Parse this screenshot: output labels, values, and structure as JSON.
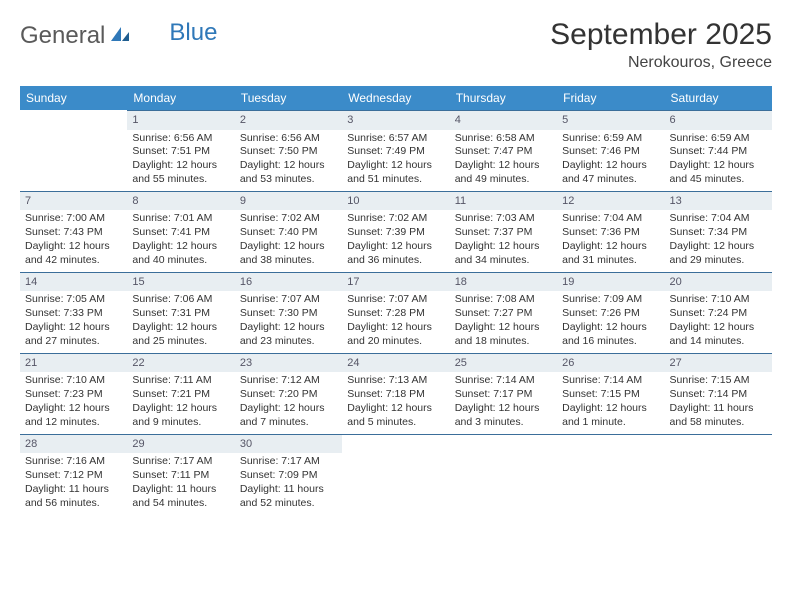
{
  "brand": {
    "part1": "General",
    "part2": "Blue"
  },
  "title": "September 2025",
  "location": "Nerokouros, Greece",
  "colors": {
    "header_bg": "#3b8bc9",
    "header_text": "#ffffff",
    "daynum_bg": "#e8eef2",
    "daynum_border": "#3b6e9a",
    "text": "#333333",
    "logo_blue": "#2f78b8",
    "logo_dark": "#5a5a5a"
  },
  "dayHeaders": [
    "Sunday",
    "Monday",
    "Tuesday",
    "Wednesday",
    "Thursday",
    "Friday",
    "Saturday"
  ],
  "weeks": [
    [
      {
        "n": "",
        "lines": []
      },
      {
        "n": "1",
        "lines": [
          "Sunrise: 6:56 AM",
          "Sunset: 7:51 PM",
          "Daylight: 12 hours",
          "and 55 minutes."
        ]
      },
      {
        "n": "2",
        "lines": [
          "Sunrise: 6:56 AM",
          "Sunset: 7:50 PM",
          "Daylight: 12 hours",
          "and 53 minutes."
        ]
      },
      {
        "n": "3",
        "lines": [
          "Sunrise: 6:57 AM",
          "Sunset: 7:49 PM",
          "Daylight: 12 hours",
          "and 51 minutes."
        ]
      },
      {
        "n": "4",
        "lines": [
          "Sunrise: 6:58 AM",
          "Sunset: 7:47 PM",
          "Daylight: 12 hours",
          "and 49 minutes."
        ]
      },
      {
        "n": "5",
        "lines": [
          "Sunrise: 6:59 AM",
          "Sunset: 7:46 PM",
          "Daylight: 12 hours",
          "and 47 minutes."
        ]
      },
      {
        "n": "6",
        "lines": [
          "Sunrise: 6:59 AM",
          "Sunset: 7:44 PM",
          "Daylight: 12 hours",
          "and 45 minutes."
        ]
      }
    ],
    [
      {
        "n": "7",
        "lines": [
          "Sunrise: 7:00 AM",
          "Sunset: 7:43 PM",
          "Daylight: 12 hours",
          "and 42 minutes."
        ]
      },
      {
        "n": "8",
        "lines": [
          "Sunrise: 7:01 AM",
          "Sunset: 7:41 PM",
          "Daylight: 12 hours",
          "and 40 minutes."
        ]
      },
      {
        "n": "9",
        "lines": [
          "Sunrise: 7:02 AM",
          "Sunset: 7:40 PM",
          "Daylight: 12 hours",
          "and 38 minutes."
        ]
      },
      {
        "n": "10",
        "lines": [
          "Sunrise: 7:02 AM",
          "Sunset: 7:39 PM",
          "Daylight: 12 hours",
          "and 36 minutes."
        ]
      },
      {
        "n": "11",
        "lines": [
          "Sunrise: 7:03 AM",
          "Sunset: 7:37 PM",
          "Daylight: 12 hours",
          "and 34 minutes."
        ]
      },
      {
        "n": "12",
        "lines": [
          "Sunrise: 7:04 AM",
          "Sunset: 7:36 PM",
          "Daylight: 12 hours",
          "and 31 minutes."
        ]
      },
      {
        "n": "13",
        "lines": [
          "Sunrise: 7:04 AM",
          "Sunset: 7:34 PM",
          "Daylight: 12 hours",
          "and 29 minutes."
        ]
      }
    ],
    [
      {
        "n": "14",
        "lines": [
          "Sunrise: 7:05 AM",
          "Sunset: 7:33 PM",
          "Daylight: 12 hours",
          "and 27 minutes."
        ]
      },
      {
        "n": "15",
        "lines": [
          "Sunrise: 7:06 AM",
          "Sunset: 7:31 PM",
          "Daylight: 12 hours",
          "and 25 minutes."
        ]
      },
      {
        "n": "16",
        "lines": [
          "Sunrise: 7:07 AM",
          "Sunset: 7:30 PM",
          "Daylight: 12 hours",
          "and 23 minutes."
        ]
      },
      {
        "n": "17",
        "lines": [
          "Sunrise: 7:07 AM",
          "Sunset: 7:28 PM",
          "Daylight: 12 hours",
          "and 20 minutes."
        ]
      },
      {
        "n": "18",
        "lines": [
          "Sunrise: 7:08 AM",
          "Sunset: 7:27 PM",
          "Daylight: 12 hours",
          "and 18 minutes."
        ]
      },
      {
        "n": "19",
        "lines": [
          "Sunrise: 7:09 AM",
          "Sunset: 7:26 PM",
          "Daylight: 12 hours",
          "and 16 minutes."
        ]
      },
      {
        "n": "20",
        "lines": [
          "Sunrise: 7:10 AM",
          "Sunset: 7:24 PM",
          "Daylight: 12 hours",
          "and 14 minutes."
        ]
      }
    ],
    [
      {
        "n": "21",
        "lines": [
          "Sunrise: 7:10 AM",
          "Sunset: 7:23 PM",
          "Daylight: 12 hours",
          "and 12 minutes."
        ]
      },
      {
        "n": "22",
        "lines": [
          "Sunrise: 7:11 AM",
          "Sunset: 7:21 PM",
          "Daylight: 12 hours",
          "and 9 minutes."
        ]
      },
      {
        "n": "23",
        "lines": [
          "Sunrise: 7:12 AM",
          "Sunset: 7:20 PM",
          "Daylight: 12 hours",
          "and 7 minutes."
        ]
      },
      {
        "n": "24",
        "lines": [
          "Sunrise: 7:13 AM",
          "Sunset: 7:18 PM",
          "Daylight: 12 hours",
          "and 5 minutes."
        ]
      },
      {
        "n": "25",
        "lines": [
          "Sunrise: 7:14 AM",
          "Sunset: 7:17 PM",
          "Daylight: 12 hours",
          "and 3 minutes."
        ]
      },
      {
        "n": "26",
        "lines": [
          "Sunrise: 7:14 AM",
          "Sunset: 7:15 PM",
          "Daylight: 12 hours",
          "and 1 minute."
        ]
      },
      {
        "n": "27",
        "lines": [
          "Sunrise: 7:15 AM",
          "Sunset: 7:14 PM",
          "Daylight: 11 hours",
          "and 58 minutes."
        ]
      }
    ],
    [
      {
        "n": "28",
        "lines": [
          "Sunrise: 7:16 AM",
          "Sunset: 7:12 PM",
          "Daylight: 11 hours",
          "and 56 minutes."
        ]
      },
      {
        "n": "29",
        "lines": [
          "Sunrise: 7:17 AM",
          "Sunset: 7:11 PM",
          "Daylight: 11 hours",
          "and 54 minutes."
        ]
      },
      {
        "n": "30",
        "lines": [
          "Sunrise: 7:17 AM",
          "Sunset: 7:09 PM",
          "Daylight: 11 hours",
          "and 52 minutes."
        ]
      },
      {
        "n": "",
        "lines": []
      },
      {
        "n": "",
        "lines": []
      },
      {
        "n": "",
        "lines": []
      },
      {
        "n": "",
        "lines": []
      }
    ]
  ]
}
